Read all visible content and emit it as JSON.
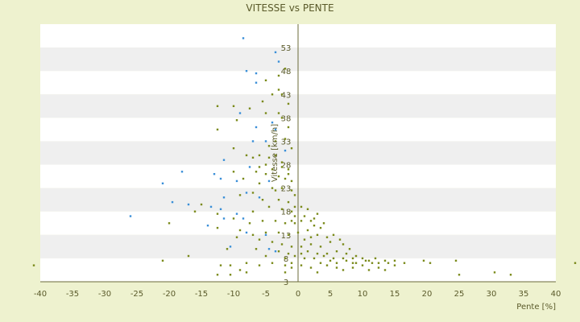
{
  "chart_data": {
    "type": "scatter",
    "title": "VITESSE vs PENTE",
    "xlabel": "Pente [%]",
    "ylabel": "Vitesse [km/h]",
    "xlim": [
      -40,
      40
    ],
    "ylim": [
      3,
      58
    ],
    "x_ticks": [
      "-40",
      "-35",
      "-30",
      "-25",
      "-20",
      "-15",
      "-10",
      "-5",
      "0",
      "5",
      "10",
      "15",
      "20",
      "25",
      "30",
      "35",
      "40"
    ],
    "y_ticks": [
      "3",
      "8",
      "13",
      "18",
      "23",
      "28",
      "33",
      "38",
      "43",
      "48",
      "53"
    ],
    "grid": "horizontal bands",
    "colors": {
      "background": "#eef2cf",
      "band_light": "#ffffff",
      "band_gray": "#efefef",
      "axis": "#6b6b3a",
      "text": "#5a5a2a",
      "series_olive": "#7a8a1a",
      "series_blue": "#3a8fd8"
    },
    "series": [
      {
        "color_key": "series_blue",
        "points": [
          [
            -8.5,
            55.0
          ],
          [
            -3.5,
            52.0
          ],
          [
            -3.0,
            50.0
          ],
          [
            -8.0,
            48.0
          ],
          [
            -6.5,
            47.5
          ],
          [
            -6.5,
            45.5
          ],
          [
            -9.0,
            39.0
          ],
          [
            -4.0,
            37.0
          ],
          [
            -6.5,
            36.0
          ],
          [
            -3.5,
            35.5
          ],
          [
            -7.0,
            33.0
          ],
          [
            -5.0,
            33.0
          ],
          [
            -2.0,
            31.0
          ],
          [
            -11.5,
            29.0
          ],
          [
            -7.5,
            27.5
          ],
          [
            -13.0,
            26.0
          ],
          [
            -18.0,
            26.5
          ],
          [
            -12.0,
            25.0
          ],
          [
            -9.5,
            24.5
          ],
          [
            -4.5,
            24.5
          ],
          [
            -21.0,
            24.0
          ],
          [
            -8.0,
            22.0
          ],
          [
            -6.0,
            21.0
          ],
          [
            -11.5,
            21.0
          ],
          [
            -19.5,
            20.0
          ],
          [
            -17.0,
            19.5
          ],
          [
            -13.5,
            19.0
          ],
          [
            -12.0,
            18.5
          ],
          [
            -9.5,
            17.5
          ],
          [
            -26.0,
            17.0
          ],
          [
            -11.5,
            16.5
          ],
          [
            -8.5,
            16.5
          ],
          [
            -14.0,
            15.0
          ],
          [
            -8.0,
            13.5
          ],
          [
            -5.0,
            13.0
          ],
          [
            -4.5,
            10.0
          ],
          [
            -10.5,
            10.5
          ],
          [
            -3.5,
            9.5
          ]
        ]
      },
      {
        "color_key": "series_olive",
        "points": [
          [
            -41.0,
            6.5
          ],
          [
            -21.0,
            7.5
          ],
          [
            -17.0,
            8.5
          ],
          [
            -12.0,
            6.5
          ],
          [
            -10.5,
            6.5
          ],
          [
            -8.0,
            7.0
          ],
          [
            -6.0,
            6.5
          ],
          [
            -4.0,
            7.0
          ],
          [
            -2.0,
            6.5
          ],
          [
            -1.0,
            7.0
          ],
          [
            -10.0,
            40.5
          ],
          [
            -12.5,
            40.5
          ],
          [
            -9.5,
            37.5
          ],
          [
            -7.5,
            40.0
          ],
          [
            -5.5,
            41.5
          ],
          [
            -4.0,
            43.0
          ],
          [
            -3.0,
            44.0
          ],
          [
            -5.0,
            46.0
          ],
          [
            -3.0,
            47.0
          ],
          [
            -2.0,
            48.5
          ],
          [
            -2.5,
            43.0
          ],
          [
            -1.5,
            41.0
          ],
          [
            -5.0,
            39.0
          ],
          [
            -3.0,
            39.0
          ],
          [
            -2.5,
            38.0
          ],
          [
            -1.5,
            36.0
          ],
          [
            -12.5,
            35.5
          ],
          [
            -10.0,
            31.5
          ],
          [
            -8.0,
            30.0
          ],
          [
            -7.0,
            29.5
          ],
          [
            -6.0,
            30.0
          ],
          [
            -4.5,
            29.5
          ],
          [
            -3.5,
            30.0
          ],
          [
            -2.5,
            28.5
          ],
          [
            -1.5,
            27.0
          ],
          [
            -6.5,
            26.5
          ],
          [
            -5.0,
            26.0
          ],
          [
            -3.0,
            25.5
          ],
          [
            -2.0,
            25.0
          ],
          [
            -1.0,
            24.5
          ],
          [
            -10.0,
            26.5
          ],
          [
            -8.5,
            25.0
          ],
          [
            -6.0,
            24.0
          ],
          [
            -4.0,
            23.0
          ],
          [
            -2.5,
            23.0
          ],
          [
            -1.0,
            22.5
          ],
          [
            -9.0,
            21.5
          ],
          [
            -7.0,
            22.0
          ],
          [
            -5.5,
            20.5
          ],
          [
            -3.0,
            20.5
          ],
          [
            -1.5,
            20.0
          ],
          [
            -0.5,
            21.5
          ],
          [
            -15.0,
            19.5
          ],
          [
            -12.5,
            17.5
          ],
          [
            -7.0,
            18.0
          ],
          [
            -4.5,
            19.0
          ],
          [
            -2.5,
            18.5
          ],
          [
            -1.0,
            18.0
          ],
          [
            0.5,
            19.0
          ],
          [
            1.5,
            18.5
          ],
          [
            -16.0,
            18.0
          ],
          [
            -10.0,
            16.5
          ],
          [
            -7.5,
            15.5
          ],
          [
            -5.5,
            16.0
          ],
          [
            -3.5,
            16.0
          ],
          [
            -2.0,
            15.5
          ],
          [
            -0.5,
            15.5
          ],
          [
            0.5,
            16.0
          ],
          [
            2.0,
            16.0
          ],
          [
            3.0,
            17.5
          ],
          [
            -20.0,
            15.5
          ],
          [
            -12.5,
            14.5
          ],
          [
            -9.0,
            14.0
          ],
          [
            -7.0,
            13.0
          ],
          [
            -5.0,
            13.5
          ],
          [
            -3.0,
            13.5
          ],
          [
            -1.5,
            13.0
          ],
          [
            0.0,
            13.5
          ],
          [
            1.5,
            14.0
          ],
          [
            2.5,
            15.0
          ],
          [
            3.5,
            14.5
          ],
          [
            4.0,
            15.5
          ],
          [
            1.0,
            12.0
          ],
          [
            2.0,
            12.5
          ],
          [
            3.0,
            13.0
          ],
          [
            4.5,
            12.5
          ],
          [
            5.5,
            13.0
          ],
          [
            6.5,
            12.0
          ],
          [
            -9.5,
            12.5
          ],
          [
            -6.0,
            12.0
          ],
          [
            -4.0,
            11.5
          ],
          [
            -2.5,
            11.0
          ],
          [
            -1.0,
            10.5
          ],
          [
            0.5,
            10.5
          ],
          [
            2.0,
            11.0
          ],
          [
            3.5,
            10.5
          ],
          [
            5.0,
            11.5
          ],
          [
            7.0,
            11.0
          ],
          [
            8.0,
            10.0
          ],
          [
            -11.0,
            10.0
          ],
          [
            -6.5,
            10.0
          ],
          [
            -3.0,
            9.5
          ],
          [
            -1.5,
            9.0
          ],
          [
            0.5,
            9.0
          ],
          [
            1.5,
            9.5
          ],
          [
            3.0,
            9.0
          ],
          [
            4.5,
            9.0
          ],
          [
            6.0,
            9.5
          ],
          [
            7.5,
            9.0
          ],
          [
            9.0,
            8.5
          ],
          [
            -5.0,
            8.5
          ],
          [
            -2.0,
            8.0
          ],
          [
            -0.5,
            8.5
          ],
          [
            1.0,
            8.0
          ],
          [
            2.5,
            8.0
          ],
          [
            4.0,
            8.5
          ],
          [
            5.5,
            8.0
          ],
          [
            7.0,
            8.0
          ],
          [
            8.5,
            8.0
          ],
          [
            10.0,
            8.0
          ],
          [
            11.0,
            7.5
          ],
          [
            12.0,
            8.0
          ],
          [
            13.5,
            7.5
          ],
          [
            15.0,
            7.5
          ],
          [
            16.5,
            7.0
          ],
          [
            19.5,
            7.5
          ],
          [
            20.5,
            7.0
          ],
          [
            24.5,
            7.5
          ],
          [
            30.5,
            5.0
          ],
          [
            33.0,
            4.5
          ],
          [
            25.0,
            4.5
          ],
          [
            43.0,
            7.0
          ],
          [
            -8.0,
            5.0
          ],
          [
            -9.0,
            5.5
          ],
          [
            -12.5,
            4.5
          ],
          [
            -10.5,
            4.5
          ],
          [
            -2.0,
            5.0
          ],
          [
            -1.0,
            6.0
          ],
          [
            0.5,
            6.5
          ],
          [
            2.0,
            6.0
          ],
          [
            3.0,
            5.0
          ],
          [
            4.5,
            6.5
          ],
          [
            6.0,
            6.0
          ],
          [
            7.0,
            5.5
          ],
          [
            8.5,
            6.0
          ],
          [
            10.0,
            6.5
          ],
          [
            11.0,
            5.5
          ],
          [
            12.5,
            6.0
          ],
          [
            13.5,
            5.5
          ],
          [
            15.0,
            6.5
          ],
          [
            9.0,
            7.0
          ],
          [
            10.5,
            7.5
          ],
          [
            11.5,
            7.0
          ],
          [
            12.5,
            7.0
          ],
          [
            14.0,
            7.0
          ],
          [
            6.0,
            7.0
          ],
          [
            7.5,
            7.5
          ],
          [
            8.5,
            7.0
          ],
          [
            5.0,
            7.5
          ],
          [
            3.5,
            7.0
          ],
          [
            -4.0,
            27.0
          ],
          [
            -4.5,
            32.0
          ],
          [
            -3.5,
            33.0
          ],
          [
            -2.0,
            33.5
          ],
          [
            -1.0,
            31.5
          ],
          [
            -6.0,
            27.5
          ],
          [
            -5.0,
            28.0
          ],
          [
            -2.5,
            27.5
          ],
          [
            -1.5,
            26.0
          ],
          [
            -3.5,
            22.5
          ],
          [
            -0.5,
            19.0
          ],
          [
            1.0,
            17.0
          ],
          [
            -0.5,
            17.0
          ],
          [
            -1.0,
            16.0
          ],
          [
            2.5,
            16.5
          ]
        ]
      }
    ]
  }
}
